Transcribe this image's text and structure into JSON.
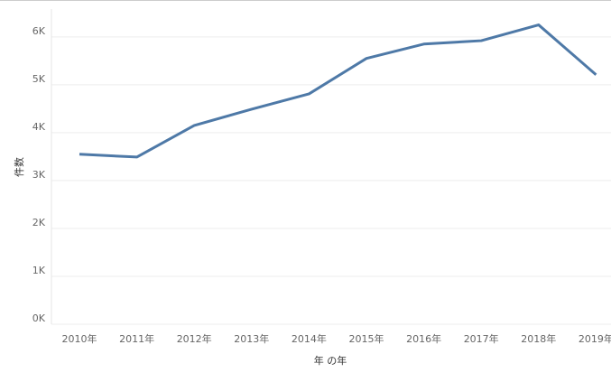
{
  "chart_data": {
    "type": "line",
    "x_label": "年 の年",
    "y_label": "件数",
    "categories": [
      "2010年",
      "2011年",
      "2012年",
      "2013年",
      "2014年",
      "2015年",
      "2016年",
      "2017年",
      "2018年",
      "2019年"
    ],
    "values": [
      3550,
      3490,
      4150,
      4490,
      4810,
      5550,
      5850,
      5920,
      6250,
      5210
    ],
    "color": "#4e79a7",
    "ylim": [
      0,
      6600
    ],
    "yticks": [
      {
        "value": 0,
        "label": "0K"
      },
      {
        "value": 1000,
        "label": "1K"
      },
      {
        "value": 2000,
        "label": "2K"
      },
      {
        "value": 3000,
        "label": "3K"
      },
      {
        "value": 4000,
        "label": "4K"
      },
      {
        "value": 5000,
        "label": "5K"
      },
      {
        "value": 6000,
        "label": "6K"
      }
    ],
    "grid": true
  }
}
